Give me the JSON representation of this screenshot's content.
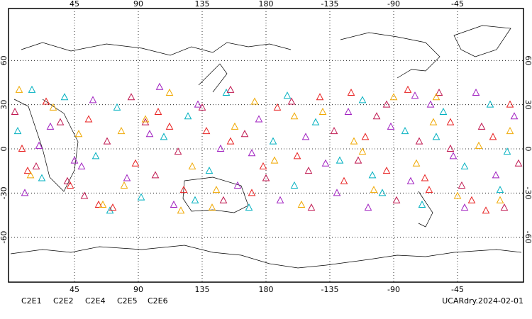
{
  "chart_data": {
    "type": "map_scatter",
    "label": "UCARdry.2024-02-01",
    "xlim": [
      0,
      360
    ],
    "ylim": [
      -90,
      90
    ],
    "xticks": [
      45,
      90,
      135,
      180,
      {
        "value": 225,
        "label": "-135"
      },
      {
        "value": 270,
        "label": "-90"
      },
      {
        "value": 315,
        "label": "-45"
      }
    ],
    "yticks": [
      60,
      30,
      0,
      -30,
      -60
    ],
    "grid": true,
    "series": [
      {
        "name": "C2E1",
        "color": "#00b0c0",
        "lon": [
          5,
          22,
          38,
          60,
          75,
          92,
          108,
          125,
          140,
          152,
          168,
          185,
          200,
          215,
          232,
          248,
          262,
          278,
          290,
          305,
          320,
          338,
          350,
          15,
          70,
          130,
          195,
          255,
          300,
          345
        ],
        "lat": [
          12,
          -20,
          35,
          -5,
          28,
          -33,
          8,
          22,
          -15,
          38,
          -40,
          5,
          -25,
          18,
          -8,
          33,
          -30,
          12,
          -38,
          25,
          -12,
          30,
          -2,
          40,
          -42,
          -35,
          36,
          -18,
          8,
          -28
        ]
      },
      {
        "name": "C2E2",
        "color": "#a020c0",
        "lon": [
          10,
          28,
          45,
          58,
          82,
          98,
          115,
          132,
          148,
          160,
          175,
          190,
          208,
          222,
          238,
          252,
          268,
          282,
          296,
          312,
          328,
          342,
          355,
          50,
          105,
          170,
          230,
          285,
          320,
          20
        ],
        "lat": [
          -30,
          15,
          -8,
          33,
          -20,
          10,
          -38,
          30,
          0,
          -25,
          20,
          -35,
          8,
          -10,
          25,
          -40,
          15,
          -22,
          30,
          -5,
          38,
          -18,
          22,
          -12,
          42,
          -3,
          -30,
          36,
          -40,
          2
        ]
      },
      {
        "name": "C2E4",
        "color": "#c01850",
        "lon": [
          3,
          18,
          35,
          52,
          68,
          85,
          102,
          118,
          135,
          150,
          165,
          180,
          198,
          212,
          228,
          245,
          258,
          272,
          288,
          302,
          318,
          332,
          348,
          40,
          95,
          155,
          210,
          265,
          310,
          358
        ],
        "lat": [
          25,
          -12,
          18,
          -32,
          5,
          35,
          -18,
          -2,
          28,
          -35,
          10,
          -20,
          32,
          -40,
          12,
          -8,
          22,
          -35,
          5,
          38,
          -25,
          15,
          -40,
          -22,
          18,
          40,
          -15,
          30,
          0,
          -10
        ]
      },
      {
        "name": "C2E5",
        "color": "#e82020",
        "lon": [
          8,
          25,
          42,
          55,
          72,
          88,
          104,
          122,
          138,
          155,
          170,
          188,
          202,
          218,
          235,
          250,
          265,
          280,
          295,
          310,
          325,
          340,
          352,
          62,
          112,
          178,
          240,
          292,
          335,
          12
        ],
        "lat": [
          0,
          32,
          -25,
          20,
          -40,
          -10,
          25,
          -28,
          12,
          5,
          -30,
          28,
          -5,
          35,
          -22,
          8,
          -15,
          40,
          -28,
          18,
          -35,
          8,
          30,
          -38,
          15,
          -12,
          38,
          -20,
          -42,
          -15
        ]
      },
      {
        "name": "C2E6",
        "color": "#f0a800",
        "lon": [
          14,
          30,
          48,
          65,
          80,
          95,
          112,
          128,
          145,
          158,
          172,
          186,
          205,
          220,
          242,
          256,
          270,
          286,
          298,
          315,
          330,
          345,
          6,
          78,
          142,
          200,
          248,
          300,
          352,
          120
        ],
        "lat": [
          -18,
          28,
          10,
          -38,
          -25,
          20,
          38,
          -12,
          -28,
          15,
          32,
          -8,
          -38,
          25,
          5,
          -28,
          35,
          -10,
          18,
          -32,
          2,
          -35,
          40,
          12,
          -40,
          22,
          -2,
          35,
          12,
          -42
        ]
      }
    ]
  }
}
